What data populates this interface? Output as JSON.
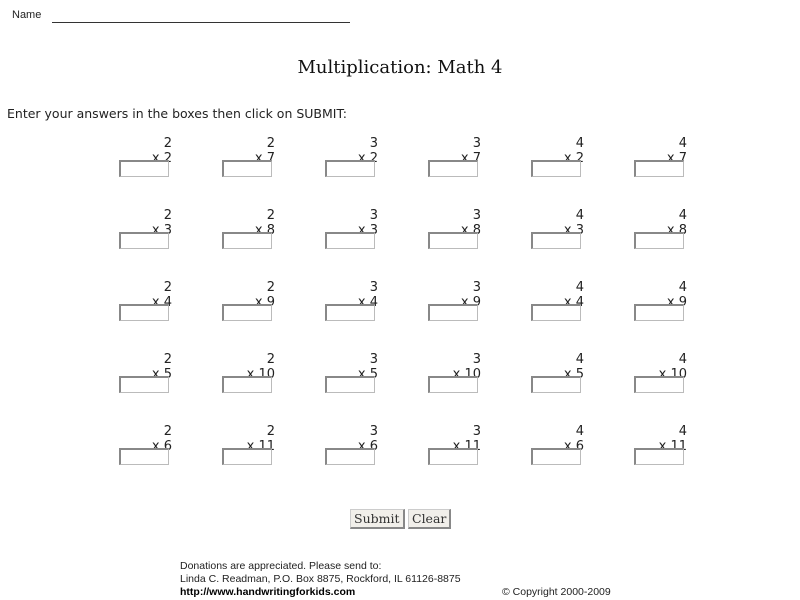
{
  "name_label": "Name",
  "title": "Multiplication: Math 4",
  "instructions": "Enter your answers in the boxes then click on SUBMIT:",
  "columns_top": [
    "2",
    "2",
    "3",
    "3",
    "4",
    "4"
  ],
  "problems": [
    [
      {
        "top": "2",
        "mul": "x 2"
      },
      {
        "top": "2",
        "mul": "x 7"
      },
      {
        "top": "3",
        "mul": "x 2"
      },
      {
        "top": "3",
        "mul": "x 7"
      },
      {
        "top": "4",
        "mul": "x 2"
      },
      {
        "top": "4",
        "mul": "x 7"
      }
    ],
    [
      {
        "top": "2",
        "mul": "x 3"
      },
      {
        "top": "2",
        "mul": "x 8"
      },
      {
        "top": "3",
        "mul": "x 3"
      },
      {
        "top": "3",
        "mul": "x 8"
      },
      {
        "top": "4",
        "mul": "x 3"
      },
      {
        "top": "4",
        "mul": "x 8"
      }
    ],
    [
      {
        "top": "2",
        "mul": "x 4"
      },
      {
        "top": "2",
        "mul": "x 9"
      },
      {
        "top": "3",
        "mul": "x 4"
      },
      {
        "top": "3",
        "mul": "x 9"
      },
      {
        "top": "4",
        "mul": "x 4"
      },
      {
        "top": "4",
        "mul": "x 9"
      }
    ],
    [
      {
        "top": "2",
        "mul": "x 5"
      },
      {
        "top": "2",
        "mul": "x 10"
      },
      {
        "top": "3",
        "mul": "x 5"
      },
      {
        "top": "3",
        "mul": "x 10"
      },
      {
        "top": "4",
        "mul": "x 5"
      },
      {
        "top": "4",
        "mul": "x 10"
      }
    ],
    [
      {
        "top": "2",
        "mul": "x 6"
      },
      {
        "top": "2",
        "mul": "x 11"
      },
      {
        "top": "3",
        "mul": "x 6"
      },
      {
        "top": "3",
        "mul": "x 11"
      },
      {
        "top": "4",
        "mul": "x 6"
      },
      {
        "top": "4",
        "mul": "x 11"
      }
    ]
  ],
  "buttons": {
    "submit": "Submit",
    "clear": "Clear"
  },
  "footer": {
    "line1": "Donations are appreciated.  Please send to:",
    "line2": "Linda C. Readman, P.O. Box 8875, Rockford, IL 61126-8875",
    "url": "http://www.handwritingforkids.com",
    "copyright": "© Copyright 2000-2009"
  }
}
